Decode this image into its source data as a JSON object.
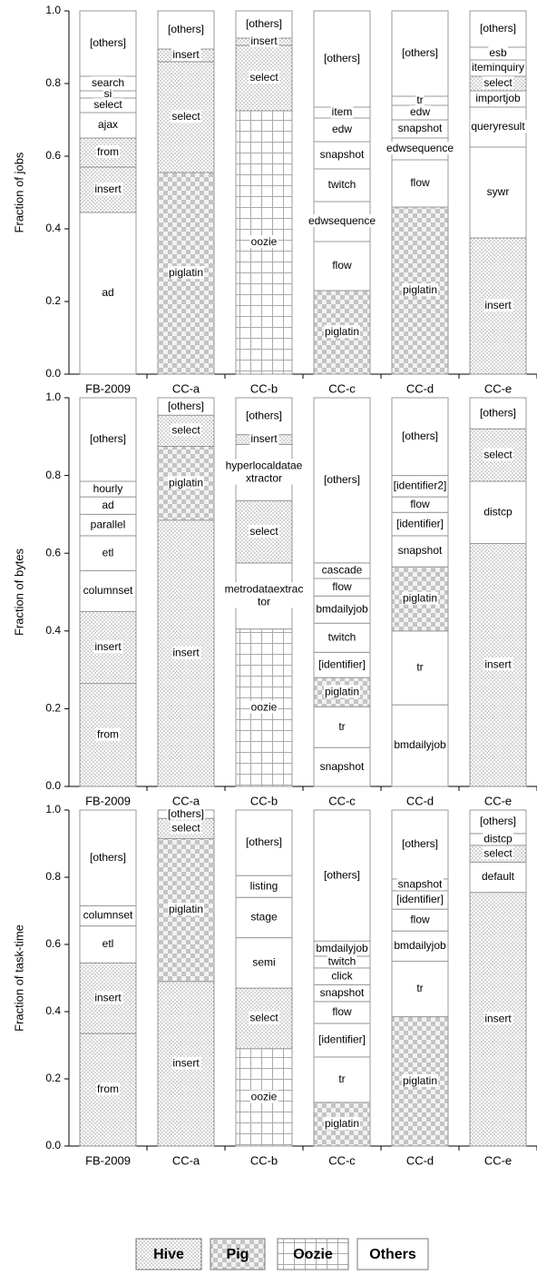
{
  "chart_data": [
    {
      "type": "stacked-bar",
      "ylabel": "Fraction of jobs",
      "categories": [
        "FB-2009",
        "CC-a",
        "CC-b",
        "CC-c",
        "CC-d",
        "CC-e"
      ],
      "ylim": [
        0,
        1
      ],
      "yticks": [
        {
          "value": 0,
          "label": "0.0"
        },
        0.2,
        0.4,
        0.6,
        0.8,
        {
          "value": 1,
          "label": "1.0"
        }
      ],
      "bars": [
        [
          {
            "label": "ad",
            "group": "Others",
            "value": 0.445
          },
          {
            "label": "insert",
            "group": "Hive",
            "value": 0.125
          },
          {
            "label": "from",
            "group": "Hive",
            "value": 0.08
          },
          {
            "label": "ajax",
            "group": "Others",
            "value": 0.07
          },
          {
            "label": "select",
            "group": "Others",
            "value": 0.04
          },
          {
            "label": "si",
            "group": "Others",
            "value": 0.02
          },
          {
            "label": "search",
            "group": "Others",
            "value": 0.04
          },
          {
            "label": "[others]",
            "group": "Others",
            "value": 0.18
          }
        ],
        [
          {
            "label": "piglatin",
            "group": "Pig",
            "value": 0.555
          },
          {
            "label": "select",
            "group": "Hive",
            "value": 0.305
          },
          {
            "label": "insert",
            "group": "Hive",
            "value": 0.035
          },
          {
            "label": "[others]",
            "group": "Others",
            "value": 0.105
          }
        ],
        [
          {
            "label": "oozie",
            "group": "Oozie",
            "value": 0.725
          },
          {
            "label": "select",
            "group": "Hive",
            "value": 0.18
          },
          {
            "label": "insert",
            "group": "Hive",
            "value": 0.02
          },
          {
            "label": "[others]",
            "group": "Others",
            "value": 0.075
          }
        ],
        [
          {
            "label": "piglatin",
            "group": "Pig",
            "value": 0.23
          },
          {
            "label": "flow",
            "group": "Others",
            "value": 0.135
          },
          {
            "label": "edwsequence",
            "group": "Others",
            "value": 0.11
          },
          {
            "label": "twitch",
            "group": "Others",
            "value": 0.09
          },
          {
            "label": "snapshot",
            "group": "Others",
            "value": 0.075
          },
          {
            "label": "edw",
            "group": "Others",
            "value": 0.065
          },
          {
            "label": "item",
            "group": "Others",
            "value": 0.03
          },
          {
            "label": "[others]",
            "group": "Others",
            "value": 0.265
          }
        ],
        [
          {
            "label": "piglatin",
            "group": "Pig",
            "value": 0.46
          },
          {
            "label": "flow",
            "group": "Others",
            "value": 0.13
          },
          {
            "label": "edwsequence",
            "group": "Others",
            "value": 0.06
          },
          {
            "label": "snapshot",
            "group": "Others",
            "value": 0.05
          },
          {
            "label": "edw",
            "group": "Others",
            "value": 0.04
          },
          {
            "label": "tr",
            "group": "Others",
            "value": 0.025
          },
          {
            "label": "[others]",
            "group": "Others",
            "value": 0.235
          }
        ],
        [
          {
            "label": "insert",
            "group": "Hive",
            "value": 0.375
          },
          {
            "label": "sywr",
            "group": "Others",
            "value": 0.25
          },
          {
            "label": "queryresult",
            "group": "Others",
            "value": 0.11
          },
          {
            "label": "importjob",
            "group": "Others",
            "value": 0.045
          },
          {
            "label": "select",
            "group": "Hive",
            "value": 0.04
          },
          {
            "label": "iteminquiry",
            "group": "Others",
            "value": 0.045
          },
          {
            "label": "esb",
            "group": "Others",
            "value": 0.035
          },
          {
            "label": "[others]",
            "group": "Others",
            "value": 0.1
          }
        ]
      ]
    },
    {
      "type": "stacked-bar",
      "ylabel": "Fraction of bytes",
      "categories": [
        "FB-2009",
        "CC-a",
        "CC-b",
        "CC-c",
        "CC-d",
        "CC-e"
      ],
      "ylim": [
        0,
        1
      ],
      "yticks": [
        {
          "value": 0,
          "label": "0.0"
        },
        0.2,
        0.4,
        0.6,
        0.8,
        {
          "value": 1,
          "label": "1.0"
        }
      ],
      "bars": [
        [
          {
            "label": "from",
            "group": "Hive",
            "value": 0.265
          },
          {
            "label": "insert",
            "group": "Hive",
            "value": 0.185
          },
          {
            "label": "columnset",
            "group": "Others",
            "value": 0.105
          },
          {
            "label": "etl",
            "group": "Others",
            "value": 0.09
          },
          {
            "label": "parallel",
            "group": "Others",
            "value": 0.055
          },
          {
            "label": "ad",
            "group": "Others",
            "value": 0.045
          },
          {
            "label": "hourly",
            "group": "Others",
            "value": 0.04
          },
          {
            "label": "[others]",
            "group": "Others",
            "value": 0.215
          }
        ],
        [
          {
            "label": "insert",
            "group": "Hive",
            "value": 0.685
          },
          {
            "label": "piglatin",
            "group": "Pig",
            "value": 0.19
          },
          {
            "label": "select",
            "group": "Hive",
            "value": 0.08
          },
          {
            "label": "[others]",
            "group": "Others",
            "value": 0.045
          }
        ],
        [
          {
            "label": "oozie",
            "group": "Oozie",
            "value": 0.405
          },
          {
            "label": "metrodataextractor",
            "group": "Others",
            "value": 0.17
          },
          {
            "label": "select",
            "group": "Hive",
            "value": 0.16
          },
          {
            "label": "hyperlocaldataextractor",
            "group": "Others",
            "value": 0.145
          },
          {
            "label": "insert",
            "group": "Hive",
            "value": 0.025
          },
          {
            "label": "[others]",
            "group": "Others",
            "value": 0.095
          }
        ],
        [
          {
            "label": "snapshot",
            "group": "Others",
            "value": 0.1
          },
          {
            "label": "tr",
            "group": "Others",
            "value": 0.105
          },
          {
            "label": "piglatin",
            "group": "Pig",
            "value": 0.075
          },
          {
            "label": "[identifier]",
            "group": "Others",
            "value": 0.065
          },
          {
            "label": "twitch",
            "group": "Others",
            "value": 0.075
          },
          {
            "label": "bmdailyjob",
            "group": "Others",
            "value": 0.07
          },
          {
            "label": "flow",
            "group": "Others",
            "value": 0.045
          },
          {
            "label": "cascade",
            "group": "Others",
            "value": 0.04
          },
          {
            "label": "[others]",
            "group": "Others",
            "value": 0.425
          }
        ],
        [
          {
            "label": "bmdailyjob",
            "group": "Others",
            "value": 0.21
          },
          {
            "label": "tr",
            "group": "Others",
            "value": 0.19
          },
          {
            "label": "piglatin",
            "group": "Pig",
            "value": 0.165
          },
          {
            "label": "snapshot",
            "group": "Others",
            "value": 0.08
          },
          {
            "label": "[identifier]",
            "group": "Others",
            "value": 0.06
          },
          {
            "label": "flow",
            "group": "Others",
            "value": 0.04
          },
          {
            "label": "[identifier2]",
            "group": "Others",
            "value": 0.055
          },
          {
            "label": "[others]",
            "group": "Others",
            "value": 0.2
          }
        ],
        [
          {
            "label": "insert",
            "group": "Hive",
            "value": 0.625
          },
          {
            "label": "distcp",
            "group": "Others",
            "value": 0.16
          },
          {
            "label": "select",
            "group": "Hive",
            "value": 0.135
          },
          {
            "label": "[others]",
            "group": "Others",
            "value": 0.08
          }
        ]
      ]
    },
    {
      "type": "stacked-bar",
      "ylabel": "Fraction of task-time",
      "categories": [
        "FB-2009",
        "CC-a",
        "CC-b",
        "CC-c",
        "CC-d",
        "CC-e"
      ],
      "ylim": [
        0,
        1
      ],
      "yticks": [
        {
          "value": 0,
          "label": "0.0"
        },
        0.2,
        0.4,
        0.6,
        0.8,
        {
          "value": 1,
          "label": "1.0"
        }
      ],
      "bars": [
        [
          {
            "label": "from",
            "group": "Hive",
            "value": 0.335
          },
          {
            "label": "insert",
            "group": "Hive",
            "value": 0.21
          },
          {
            "label": "etl",
            "group": "Others",
            "value": 0.11
          },
          {
            "label": "columnset",
            "group": "Others",
            "value": 0.06
          },
          {
            "label": "[others]",
            "group": "Others",
            "value": 0.285
          }
        ],
        [
          {
            "label": "insert",
            "group": "Hive",
            "value": 0.49
          },
          {
            "label": "piglatin",
            "group": "Pig",
            "value": 0.425
          },
          {
            "label": "select",
            "group": "Hive",
            "value": 0.06
          },
          {
            "label": "[others]",
            "group": "Others",
            "value": 0.025
          }
        ],
        [
          {
            "label": "oozie",
            "group": "Oozie",
            "value": 0.29
          },
          {
            "label": "select",
            "group": "Hive",
            "value": 0.18
          },
          {
            "label": "semi",
            "group": "Others",
            "value": 0.15
          },
          {
            "label": "stage",
            "group": "Others",
            "value": 0.12
          },
          {
            "label": "listing",
            "group": "Others",
            "value": 0.065
          },
          {
            "label": "[others]",
            "group": "Others",
            "value": 0.195
          }
        ],
        [
          {
            "label": "piglatin",
            "group": "Pig",
            "value": 0.13
          },
          {
            "label": "tr",
            "group": "Others",
            "value": 0.135
          },
          {
            "label": "[identifier]",
            "group": "Others",
            "value": 0.1
          },
          {
            "label": "flow",
            "group": "Others",
            "value": 0.065
          },
          {
            "label": "snapshot",
            "group": "Others",
            "value": 0.05
          },
          {
            "label": "click",
            "group": "Others",
            "value": 0.05
          },
          {
            "label": "twitch",
            "group": "Others",
            "value": 0.035
          },
          {
            "label": "bmdailyjob",
            "group": "Others",
            "value": 0.045
          },
          {
            "label": "[others]",
            "group": "Others",
            "value": 0.39
          }
        ],
        [
          {
            "label": "piglatin",
            "group": "Pig",
            "value": 0.385
          },
          {
            "label": "tr",
            "group": "Others",
            "value": 0.165
          },
          {
            "label": "bmdailyjob",
            "group": "Others",
            "value": 0.09
          },
          {
            "label": "flow",
            "group": "Others",
            "value": 0.065
          },
          {
            "label": "[identifier]",
            "group": "Others",
            "value": 0.055
          },
          {
            "label": "snapshot",
            "group": "Others",
            "value": 0.035
          },
          {
            "label": "[others]",
            "group": "Others",
            "value": 0.205
          }
        ],
        [
          {
            "label": "insert",
            "group": "Hive",
            "value": 0.755
          },
          {
            "label": "default",
            "group": "Others",
            "value": 0.09
          },
          {
            "label": "select",
            "group": "Hive",
            "value": 0.05
          },
          {
            "label": "distcp",
            "group": "Others",
            "value": 0.035
          },
          {
            "label": "[others]",
            "group": "Others",
            "value": 0.07
          }
        ]
      ]
    }
  ],
  "legend": [
    "Hive",
    "Pig",
    "Oozie",
    "Others"
  ]
}
